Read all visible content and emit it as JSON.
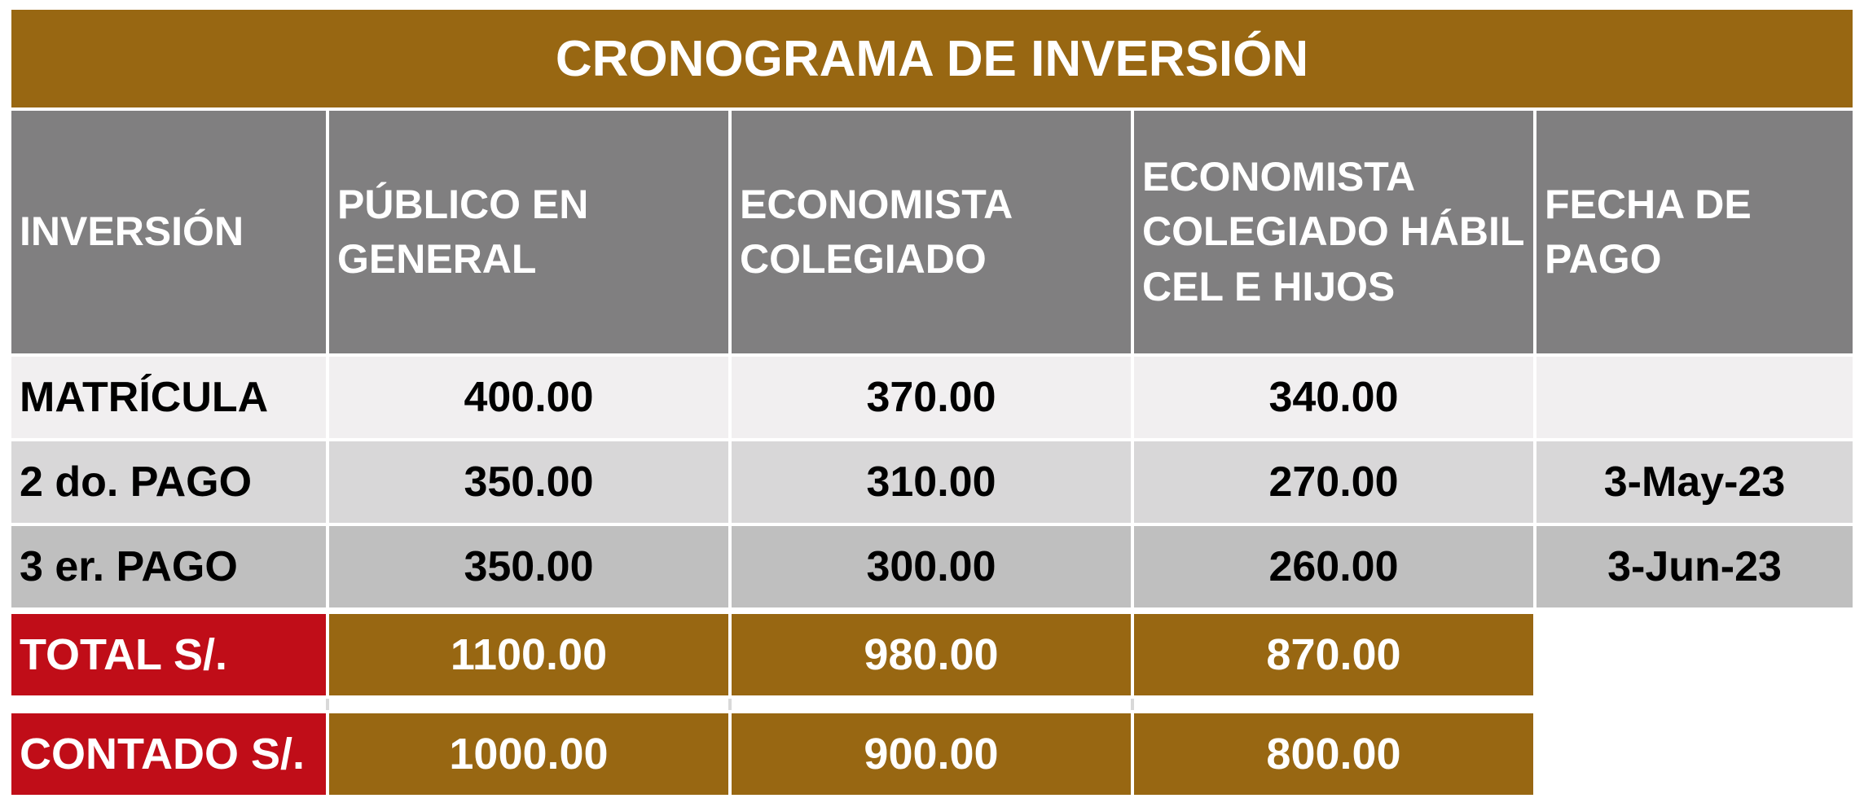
{
  "title": "CRONOGRAMA DE INVERSIÓN",
  "colors": {
    "gold": "#986712",
    "gray_header": "#807f80",
    "red": "#c00d18"
  },
  "headers": [
    "INVERSIÓN",
    "PÚBLICO EN\nGENERAL",
    "ECONOMISTA\nCOLEGIADO",
    "ECONOMISTA\nCOLEGIADO HÁBIL\nCEL E HIJOS",
    "FECHA DE\nPAGO"
  ],
  "rows": [
    {
      "label": "MATRÍCULA",
      "publico": "400.00",
      "colegiado": "370.00",
      "habil": "340.00",
      "fecha": ""
    },
    {
      "label": "2 do. PAGO",
      "publico": "350.00",
      "colegiado": "310.00",
      "habil": "270.00",
      "fecha": "3-May-23"
    },
    {
      "label": "3 er. PAGO",
      "publico": "350.00",
      "colegiado": "300.00",
      "habil": "260.00",
      "fecha": "3-Jun-23"
    }
  ],
  "totals": [
    {
      "label": "TOTAL S/.",
      "publico": "1100.00",
      "colegiado": "980.00",
      "habil": "870.00"
    },
    {
      "label": "CONTADO S/.",
      "publico": "1000.00",
      "colegiado": "900.00",
      "habil": "800.00"
    }
  ]
}
